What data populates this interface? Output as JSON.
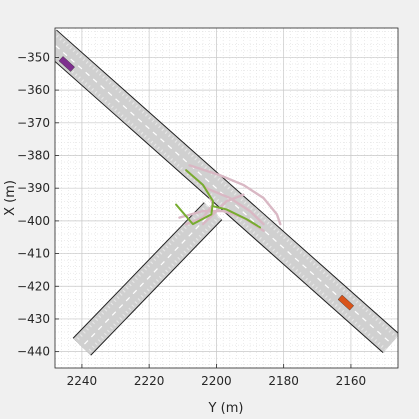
{
  "chart_data": {
    "type": "scatter",
    "title": "",
    "xlabel": "Y (m)",
    "ylabel": "X (m)",
    "x_reversed": true,
    "xlim": [
      2146,
      2248
    ],
    "ylim": [
      -445,
      -341
    ],
    "xticks": [
      2240,
      2220,
      2200,
      2180,
      2160
    ],
    "yticks": [
      -350,
      -360,
      -370,
      -380,
      -390,
      -400,
      -410,
      -420,
      -430,
      -440
    ],
    "grid": true,
    "minor_grid": true,
    "colors": {
      "background": "#f0f0f0",
      "axes_bg": "#ffffff",
      "road": "#d0d0d0",
      "road_edge": "#202020",
      "lane_marking": "#ffffff",
      "grid": "#d8d8d8",
      "ego_path": "#77ac30",
      "candidate_paths": "#d9b8c4",
      "ego_vehicle": "#7e2f8e",
      "other_vehicle": "#d95319"
    },
    "road": {
      "main_segment": [
        [
          2250,
          -344.4
        ],
        [
          2148,
          -437.5
        ]
      ],
      "branch_segment": [
        [
          2201,
          -397.0
        ],
        [
          2240,
          -438.5
        ]
      ],
      "width_m": 7
    },
    "vehicles": [
      {
        "name": "",
        "y": 2244.5,
        "x": -352,
        "heading_deg": -42.4,
        "color": "#7e2f8e"
      },
      {
        "name": "",
        "y": 2161.5,
        "x": -425,
        "heading_deg": -42.4,
        "color": "#d95319"
      }
    ],
    "ego_path": [
      [
        2209,
        -384.5
      ],
      [
        2204,
        -389
      ],
      [
        2201,
        -394
      ],
      [
        2201.5,
        -398
      ],
      [
        2207,
        -401
      ],
      [
        2212,
        -395
      ]
    ],
    "ego_path_branch": [
      [
        2201,
        -395.5
      ],
      [
        2197,
        -396.5
      ],
      [
        2191,
        -399.5
      ],
      [
        2187,
        -402
      ]
    ],
    "candidate_paths": [
      [
        [
          2209,
          -384.5
        ],
        [
          2203,
          -390
        ],
        [
          2201,
          -395
        ],
        [
          2204,
          -399
        ],
        [
          2209,
          -401
        ]
      ],
      [
        [
          2203,
          -390
        ],
        [
          2196,
          -393
        ],
        [
          2190,
          -397
        ],
        [
          2186,
          -401
        ]
      ],
      [
        [
          2208,
          -383
        ],
        [
          2199,
          -386
        ],
        [
          2192,
          -389
        ],
        [
          2186,
          -393
        ],
        [
          2182,
          -398
        ],
        [
          2181,
          -401
        ]
      ],
      [
        [
          2204,
          -401
        ],
        [
          2201,
          -398
        ],
        [
          2197,
          -394
        ],
        [
          2192,
          -392
        ]
      ],
      [
        [
          2211,
          -399
        ],
        [
          2204,
          -397
        ],
        [
          2198,
          -397
        ],
        [
          2192,
          -399
        ],
        [
          2186,
          -403
        ]
      ]
    ]
  }
}
